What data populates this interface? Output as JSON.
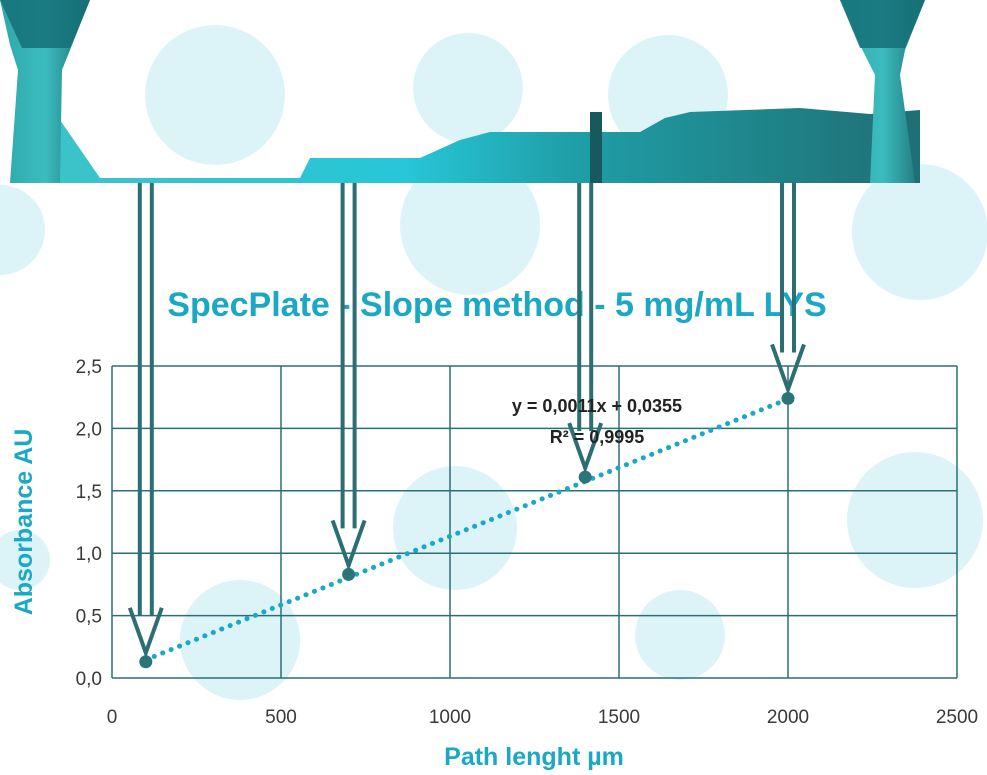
{
  "colors": {
    "accent": "#1aa8c4",
    "plate_dark": "#1f6b70",
    "plate_mid": "#2aa5a7",
    "plate_light": "#4fd6e0",
    "grid": "#2b6f74",
    "trendline": "#1aa8c4",
    "marker": "#2b7478",
    "arrow": "#2b6f74",
    "bubble": "#c5ecf4"
  },
  "chart_data": {
    "type": "scatter",
    "title": "SpecPlate - Slope method - 5 mg/mL LYS",
    "xlabel": "Path lenght µm",
    "ylabel": "Absorbance AU",
    "xlim": [
      0,
      2500
    ],
    "ylim": [
      0,
      2.5
    ],
    "x_ticks": [
      "0",
      "500",
      "1000",
      "1500",
      "2000",
      "2500"
    ],
    "y_ticks": [
      "0,0",
      "0,5",
      "1,0",
      "1,5",
      "2,0",
      "2,5"
    ],
    "grid": true,
    "series": [
      {
        "x": [
          100,
          700,
          1400,
          2000
        ],
        "y": [
          0.13,
          0.83,
          1.61,
          2.24
        ]
      }
    ],
    "trendline": {
      "slope": 0.0011,
      "intercept": 0.0355,
      "style": "dotted"
    },
    "annotations": {
      "equation": "y = 0,0011x + 0,0355",
      "r_squared": "R² = 0,9995"
    }
  }
}
